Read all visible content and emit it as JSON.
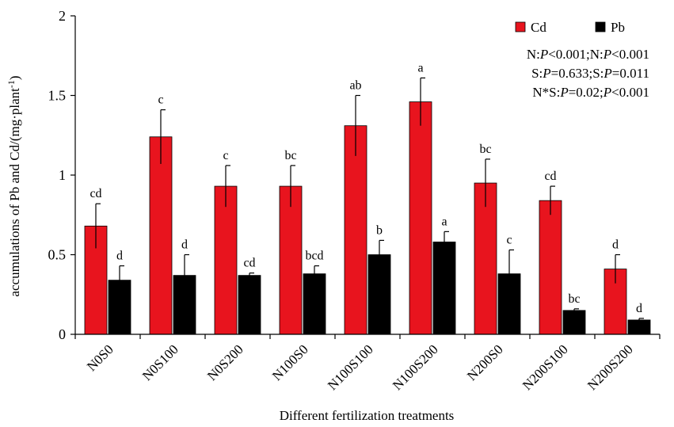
{
  "chart_data": {
    "type": "bar",
    "title": "",
    "xlabel": "Different fertilization treatments",
    "ylabel": "accumulations of Pb and Cd/(mg·plant",
    "ylabel_sup": "-1",
    "ylabel_close": ")",
    "ylim": [
      0,
      2
    ],
    "yticks": [
      0,
      0.5,
      1,
      1.5,
      2
    ],
    "ytick_labels": [
      "0",
      "0.5",
      "1",
      "1.5",
      "2"
    ],
    "categories": [
      "N0S0",
      "N0S100",
      "N0S200",
      "N100S0",
      "N100S100",
      "N100S200",
      "N200S0",
      "N200S100",
      "N200S200"
    ],
    "series": [
      {
        "name": "Cd",
        "color": "#e8141e",
        "values": [
          0.68,
          1.24,
          0.93,
          0.93,
          1.31,
          1.46,
          0.95,
          0.84,
          0.41
        ],
        "errors": [
          0.14,
          0.17,
          0.13,
          0.13,
          0.19,
          0.15,
          0.15,
          0.09,
          0.09
        ],
        "letters": [
          "cd",
          "c",
          "c",
          "bc",
          "ab",
          "a",
          "bc",
          "cd",
          "d"
        ]
      },
      {
        "name": "Pb",
        "color": "#000000",
        "values": [
          0.34,
          0.37,
          0.37,
          0.38,
          0.5,
          0.58,
          0.38,
          0.15,
          0.09
        ],
        "errors": [
          0.09,
          0.13,
          0.015,
          0.05,
          0.09,
          0.065,
          0.15,
          0.01,
          0.01
        ],
        "letters": [
          "d",
          "d",
          "cd",
          "bcd",
          "b",
          "a",
          "c",
          "bc",
          "d"
        ]
      }
    ],
    "legend_position": "top-right",
    "annotations": [
      [
        {
          "t": "N:"
        },
        {
          "t": "P",
          "i": true
        },
        {
          "t": "<0.001;N:"
        },
        {
          "t": "P",
          "i": true
        },
        {
          "t": "<0.001"
        }
      ],
      [
        {
          "t": "S:"
        },
        {
          "t": "P",
          "i": true
        },
        {
          "t": "=0.633;S:"
        },
        {
          "t": "P",
          "i": true
        },
        {
          "t": "=0.011"
        }
      ],
      [
        {
          "t": "N*S:"
        },
        {
          "t": "P",
          "i": true
        },
        {
          "t": "=0.02;"
        },
        {
          "t": "P",
          "i": true
        },
        {
          "t": "<0.001"
        }
      ]
    ]
  }
}
